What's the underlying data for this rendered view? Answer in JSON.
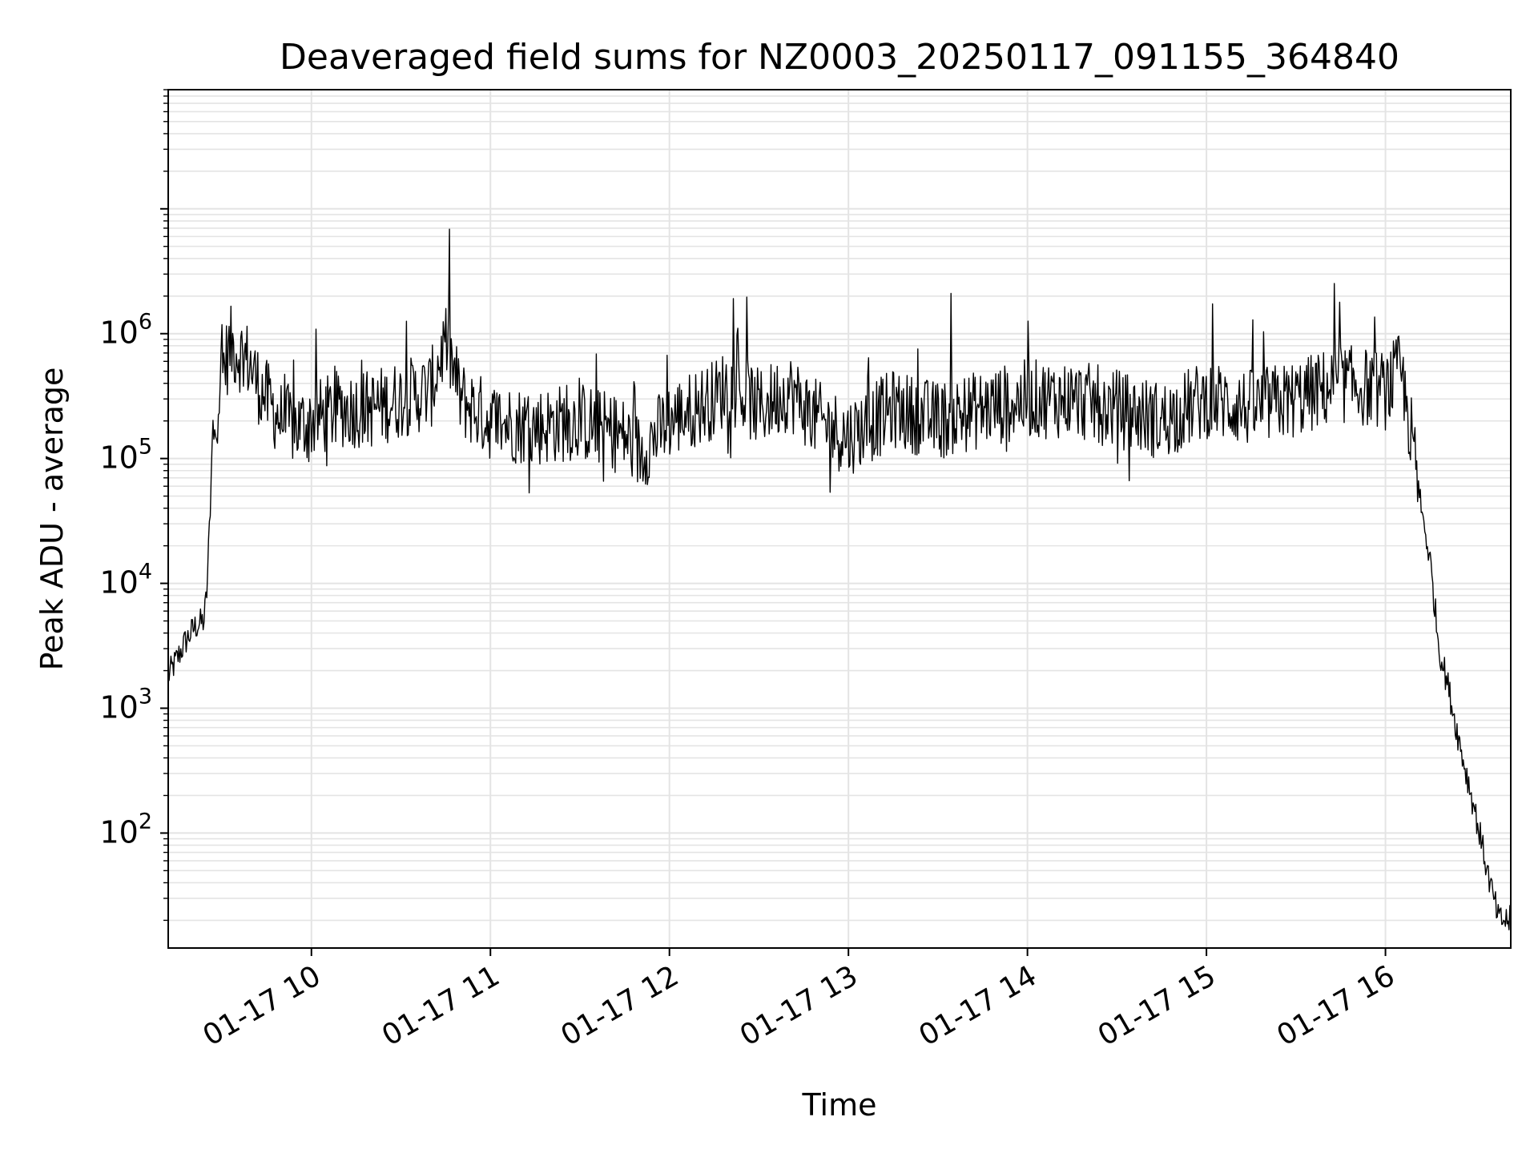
{
  "chart_data": {
    "type": "line",
    "title": "Deaveraged field sums for NZ0003_20250117_091155_364840",
    "xlabel": "Time",
    "ylabel": "Peak ADU - average",
    "yscale": "log",
    "ylim": [
      12,
      90000000
    ],
    "xlim": [
      "2025-01-17 09:12",
      "2025-01-17 16:42"
    ],
    "grid": true,
    "line_color": "#000000",
    "x_ticks": [
      {
        "value": "2025-01-17 10:00",
        "label": "01-17 10"
      },
      {
        "value": "2025-01-17 11:00",
        "label": "01-17 11"
      },
      {
        "value": "2025-01-17 12:00",
        "label": "01-17 12"
      },
      {
        "value": "2025-01-17 13:00",
        "label": "01-17 13"
      },
      {
        "value": "2025-01-17 14:00",
        "label": "01-17 14"
      },
      {
        "value": "2025-01-17 15:00",
        "label": "01-17 15"
      },
      {
        "value": "2025-01-17 16:00",
        "label": "01-17 16"
      }
    ],
    "y_ticks": [
      {
        "value": 100,
        "base": "10",
        "exp": "2"
      },
      {
        "value": 1000,
        "base": "10",
        "exp": "3"
      },
      {
        "value": 10000,
        "base": "10",
        "exp": "4"
      },
      {
        "value": 100000,
        "base": "10",
        "exp": "5"
      },
      {
        "value": 1000000,
        "base": "10",
        "exp": "6"
      }
    ],
    "series": [
      {
        "x": [
          "2025-01-17 09:12",
          "2025-01-17 09:15",
          "2025-01-17 09:18",
          "2025-01-17 09:21",
          "2025-01-17 09:24",
          "2025-01-17 09:25",
          "2025-01-17 09:27",
          "2025-01-17 09:30",
          "2025-01-17 09:33",
          "2025-01-17 09:36",
          "2025-01-17 09:39",
          "2025-01-17 09:42",
          "2025-01-17 09:45",
          "2025-01-17 09:50",
          "2025-01-17 09:55",
          "2025-01-17 10:00",
          "2025-01-17 10:10",
          "2025-01-17 10:20",
          "2025-01-17 10:30",
          "2025-01-17 10:40",
          "2025-01-17 10:45",
          "2025-01-17 10:50",
          "2025-01-17 11:00",
          "2025-01-17 11:15",
          "2025-01-17 11:30",
          "2025-01-17 11:45",
          "2025-01-17 11:50",
          "2025-01-17 12:00",
          "2025-01-17 12:15",
          "2025-01-17 12:20",
          "2025-01-17 12:30",
          "2025-01-17 12:40",
          "2025-01-17 12:50",
          "2025-01-17 13:00",
          "2025-01-17 13:15",
          "2025-01-17 13:30",
          "2025-01-17 13:45",
          "2025-01-17 14:00",
          "2025-01-17 14:15",
          "2025-01-17 14:30",
          "2025-01-17 14:45",
          "2025-01-17 15:00",
          "2025-01-17 15:15",
          "2025-01-17 15:30",
          "2025-01-17 15:45",
          "2025-01-17 16:00",
          "2025-01-17 16:05",
          "2025-01-17 16:08",
          "2025-01-17 16:12",
          "2025-01-17 16:15",
          "2025-01-17 16:18",
          "2025-01-17 16:21",
          "2025-01-17 16:25",
          "2025-01-17 16:30",
          "2025-01-17 16:35",
          "2025-01-17 16:38",
          "2025-01-17 16:42"
        ],
        "y": [
          1800,
          2500,
          3500,
          4500,
          5000,
          9000,
          150000,
          500000,
          800000,
          700000,
          600000,
          400000,
          300000,
          200000,
          180000,
          200000,
          250000,
          250000,
          300000,
          350000,
          900000,
          300000,
          200000,
          180000,
          200000,
          150000,
          110000,
          200000,
          300000,
          400000,
          250000,
          350000,
          200000,
          150000,
          250000,
          200000,
          250000,
          300000,
          300000,
          250000,
          200000,
          300000,
          250000,
          300000,
          400000,
          350000,
          500000,
          200000,
          40000,
          15000,
          3000,
          1500,
          500,
          150,
          40,
          20,
          20
        ]
      }
    ]
  }
}
